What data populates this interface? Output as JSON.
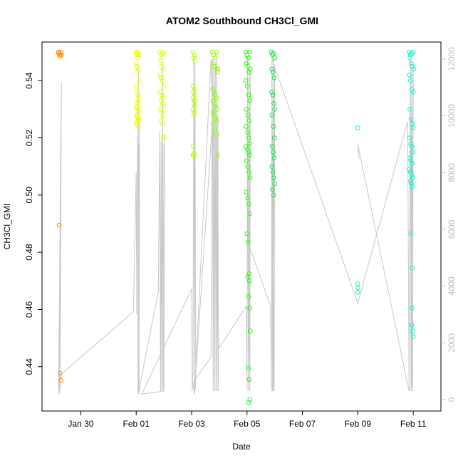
{
  "chart_data": {
    "type": "scatter",
    "title": "ATOM2 Southbound CH3Cl_GMI",
    "xlabel": "Date",
    "ylabel": "CH3Cl_GMI",
    "x_ticks": [
      "Jan 30",
      "Feb 01",
      "Feb 03",
      "Feb 05",
      "Feb 07",
      "Feb 09",
      "Feb 11"
    ],
    "x_tick_days": [
      30,
      32,
      34,
      36,
      38,
      40,
      42
    ],
    "xlim_days": [
      28.6,
      43.0
    ],
    "ylim": [
      0.4245,
      0.5535
    ],
    "y_ticks": [
      0.44,
      0.46,
      0.48,
      0.5,
      0.52,
      0.54
    ],
    "y_tick_labels": [
      "0.44",
      "0.46",
      "0.48",
      "0.50",
      "0.52",
      "0.54"
    ],
    "y2_ticks": [
      0,
      2000,
      4000,
      6000,
      8000,
      10000,
      12000
    ],
    "y2_tick_labels": [
      "0",
      "2000",
      "4000",
      "6000",
      "8000",
      "10000",
      "12000"
    ],
    "y2lim": [
      -400,
      12600
    ],
    "altitude_color": "#c8c8c8",
    "point_radius": 2.8,
    "series": [
      {
        "color": "#ff8c00",
        "x": [
          29.2,
          29.2,
          29.25,
          29.25,
          29.28,
          29.3,
          29.22,
          29.25,
          29.28
        ],
        "y": [
          0.55,
          0.5495,
          0.549,
          0.5485,
          0.55,
          0.549,
          0.4895,
          0.4377,
          0.4352
        ]
      },
      {
        "color": "#eeff00",
        "x": [
          32.0,
          32.0,
          32.03,
          32.05,
          32.08,
          32.1,
          32.0,
          32.02,
          32.05,
          32.07,
          32.1,
          32.0,
          32.03,
          32.06,
          32.09,
          32.01,
          32.04,
          32.07,
          32.1,
          32.02,
          32.05,
          32.08,
          32.0,
          32.03,
          32.06,
          32.09,
          32.02,
          32.05,
          32.08
        ],
        "y": [
          0.55,
          0.549,
          0.5495,
          0.548,
          0.55,
          0.549,
          0.546,
          0.545,
          0.543,
          0.544,
          0.54,
          0.538,
          0.536,
          0.535,
          0.534,
          0.532,
          0.531,
          0.53,
          0.529,
          0.528,
          0.527,
          0.526,
          0.525,
          0.5255,
          0.524,
          0.5265,
          0.5305,
          0.5275,
          0.5325
        ]
      },
      {
        "color": "#ddff00",
        "x": [
          32.85,
          32.9,
          32.95,
          33.0,
          32.88,
          32.92,
          32.98,
          32.86,
          32.9,
          32.95,
          33.0,
          32.87,
          32.93,
          32.97,
          32.9,
          32.95,
          33.0,
          32.88,
          32.92,
          32.97,
          32.9,
          32.96,
          33.0,
          32.98
        ],
        "y": [
          0.55,
          0.549,
          0.5495,
          0.55,
          0.547,
          0.545,
          0.544,
          0.542,
          0.541,
          0.54,
          0.538,
          0.536,
          0.535,
          0.534,
          0.533,
          0.532,
          0.531,
          0.53,
          0.529,
          0.528,
          0.526,
          0.525,
          0.5205,
          0.52
        ]
      },
      {
        "color": "#bbff00",
        "x": [
          34.05,
          34.1,
          34.08,
          34.12,
          34.05,
          34.1,
          34.07,
          34.12,
          34.06,
          34.1,
          34.08,
          34.12,
          34.05,
          34.1,
          34.07,
          34.06,
          34.09,
          34.05,
          34.08
        ],
        "y": [
          0.55,
          0.549,
          0.548,
          0.547,
          0.538,
          0.537,
          0.536,
          0.535,
          0.534,
          0.533,
          0.532,
          0.531,
          0.53,
          0.529,
          0.528,
          0.517,
          0.5145,
          0.514,
          0.5135
        ]
      },
      {
        "color": "#88ff00",
        "x": [
          34.75,
          34.8,
          34.85,
          34.9,
          34.78,
          34.83,
          34.88,
          34.93,
          34.95,
          34.76,
          34.8,
          34.85,
          34.9,
          34.78,
          34.83,
          34.88,
          34.92,
          34.76,
          34.8,
          34.85,
          34.9,
          34.78,
          34.84,
          34.9,
          34.95
        ],
        "y": [
          0.55,
          0.549,
          0.548,
          0.55,
          0.546,
          0.545,
          0.544,
          0.543,
          0.544,
          0.537,
          0.536,
          0.535,
          0.534,
          0.533,
          0.532,
          0.531,
          0.53,
          0.529,
          0.528,
          0.527,
          0.526,
          0.525,
          0.523,
          0.521,
          0.514
        ]
      },
      {
        "color": "#22ff00",
        "x": [
          35.95,
          36.0,
          36.05,
          36.1,
          35.97,
          36.02,
          36.07,
          36.12,
          35.96,
          36.01,
          36.06,
          36.1,
          35.98,
          36.03,
          36.08,
          35.97,
          36.02,
          36.06,
          36.1,
          35.96,
          36.01,
          36.05,
          36.09,
          35.98,
          36.03,
          36.07,
          36.11,
          35.97,
          36.02,
          36.06,
          36.1,
          36.0,
          36.04,
          36.08,
          36.03,
          36.06,
          36.1,
          36.12
        ],
        "y": [
          0.55,
          0.549,
          0.548,
          0.55,
          0.546,
          0.545,
          0.543,
          0.544,
          0.54,
          0.538,
          0.535,
          0.533,
          0.53,
          0.528,
          0.526,
          0.524,
          0.522,
          0.52,
          0.518,
          0.517,
          0.516,
          0.515,
          0.514,
          0.512,
          0.51,
          0.508,
          0.506,
          0.501,
          0.499,
          0.497,
          0.4935,
          0.4865,
          0.4835,
          0.4725,
          0.4715,
          0.4645,
          0.4605,
          0.4525
        ]
      },
      {
        "color": "#11ff22",
        "x": [
          36.05,
          36.08,
          36.1,
          36.06,
          36.09
        ],
        "y": [
          0.4395,
          0.4355,
          0.4285,
          0.4275,
          0.47
        ]
      },
      {
        "color": "#00ee44",
        "x": [
          36.88,
          36.92,
          36.95,
          37.0,
          36.9,
          36.94,
          36.98,
          36.89,
          36.93,
          36.97,
          37.0,
          36.9,
          36.95,
          36.99,
          36.91,
          36.95,
          36.98,
          36.9,
          36.94,
          36.97,
          37.0,
          36.92,
          36.96
        ],
        "y": [
          0.55,
          0.549,
          0.5495,
          0.548,
          0.544,
          0.543,
          0.541,
          0.536,
          0.535,
          0.532,
          0.53,
          0.528,
          0.524,
          0.52,
          0.517,
          0.515,
          0.513,
          0.51,
          0.508,
          0.506,
          0.504,
          0.502,
          0.5
        ]
      },
      {
        "color": "#00ffbb",
        "x": [
          40.0,
          40.0,
          40.0,
          40.0
        ],
        "y": [
          0.5235,
          0.469,
          0.4675,
          0.466
        ]
      },
      {
        "color": "#00ffcc",
        "x": [
          41.85,
          41.9,
          41.95,
          42.0,
          41.88,
          41.92,
          41.97,
          42.02,
          41.86,
          41.9,
          41.95,
          42.0,
          41.88,
          41.92,
          41.96,
          42.0,
          41.87,
          41.91,
          41.95,
          41.99,
          41.88,
          41.92,
          41.96,
          41.86,
          41.9,
          41.94,
          41.98,
          41.89,
          41.93,
          41.97,
          41.92,
          41.96,
          41.95,
          41.98,
          42.0,
          41.97
        ],
        "y": [
          0.55,
          0.549,
          0.5495,
          0.55,
          0.548,
          0.546,
          0.545,
          0.544,
          0.542,
          0.54,
          0.537,
          0.536,
          0.53,
          0.5265,
          0.525,
          0.5235,
          0.52,
          0.518,
          0.517,
          0.515,
          0.513,
          0.512,
          0.511,
          0.509,
          0.508,
          0.507,
          0.506,
          0.505,
          0.504,
          0.503,
          0.4865,
          0.4605,
          0.4545,
          0.4525,
          0.4505,
          0.4745
        ]
      }
    ],
    "altitude": {
      "x": [
        29.25,
        29.3,
        29.22,
        29.28,
        29.2,
        29.3,
        31.9,
        32.0,
        32.02,
        32.05,
        32.03,
        32.08,
        32.06,
        32.1,
        32.08,
        32.12,
        32.1,
        32.15,
        32.8,
        32.85,
        32.88,
        32.9,
        32.92,
        32.95,
        32.97,
        33.0,
        32.98,
        33.02,
        33.0,
        32.2,
        34.0,
        34.02,
        34.05,
        34.08,
        34.1,
        34.12,
        34.15,
        34.1,
        34.05,
        34.7,
        34.75,
        34.78,
        34.8,
        34.83,
        34.85,
        34.88,
        34.9,
        34.92,
        34.95,
        34.97,
        34.9,
        34.1,
        34.7,
        34.98,
        35.98,
        36.0,
        36.02,
        36.05,
        36.08,
        36.1,
        36.12,
        36.1,
        36.05,
        36.85,
        36.88,
        36.9,
        36.92,
        36.95,
        36.98,
        37.0,
        36.95,
        36.9,
        40.0,
        41.8,
        41.85,
        41.9,
        41.92,
        41.95,
        41.98,
        42.0,
        41.95,
        41.9,
        41.85,
        40.0,
        40.05
      ],
      "y": [
        200,
        11200,
        400,
        9500,
        200,
        900,
        3100,
        8000,
        3000,
        9300,
        5500,
        11800,
        300,
        9000,
        200,
        9800,
        200,
        600,
        3800,
        9500,
        300,
        9100,
        300,
        12000,
        400,
        9000,
        300,
        9200,
        300,
        200,
        3900,
        300,
        1000,
        12100,
        200,
        11900,
        500,
        200,
        600,
        1500,
        12000,
        300,
        12000,
        300,
        11800,
        300,
        11700,
        300,
        10000,
        300,
        12000,
        200,
        12000,
        1800,
        3300,
        300,
        12100,
        300,
        12000,
        300,
        11600,
        300,
        5500,
        3300,
        300,
        12100,
        300,
        12000,
        300,
        11800,
        300,
        12000,
        3400,
        9800,
        300,
        12000,
        300,
        11900,
        400,
        11800,
        300,
        11700,
        300,
        9000,
        8500
      ]
    }
  }
}
